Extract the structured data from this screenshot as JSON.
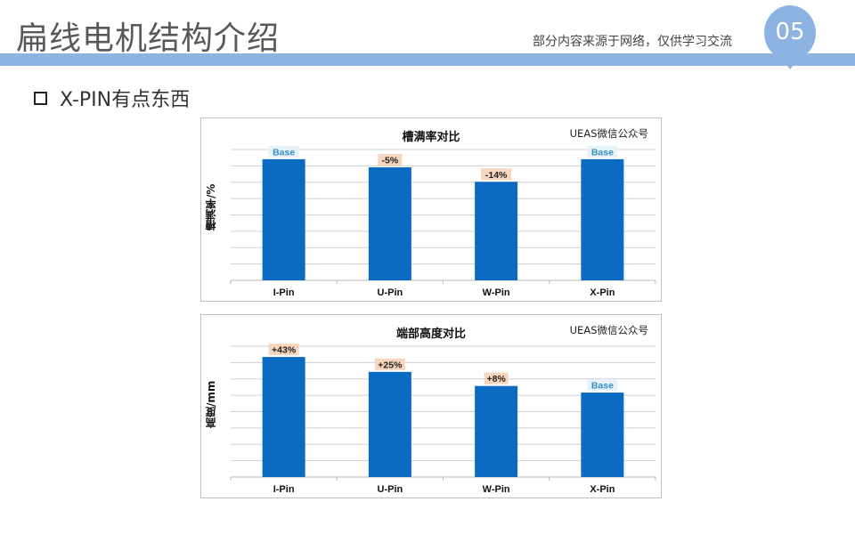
{
  "header": {
    "title": "扁线电机结构介绍",
    "notice": "部分内容来源于网络，仅供学习交流",
    "page_number": "05",
    "accent_color": "#8db3e2"
  },
  "section": {
    "bullet": "X-PIN有点东西"
  },
  "chart_data": [
    {
      "type": "bar",
      "title": "槽满率对比",
      "source": "UEAS微信公众号",
      "ylabel": "槽满率/%",
      "categories": [
        "I-Pin",
        "U-Pin",
        "W-Pin",
        "X-Pin"
      ],
      "values": [
        100,
        95,
        86,
        100
      ],
      "data_labels": [
        "Base",
        "-5%",
        "-14%",
        "Base"
      ],
      "bar_color": "#0b6bc3",
      "grid": true,
      "legend": "none"
    },
    {
      "type": "bar",
      "title": "端部高度对比",
      "source": "UEAS微信公众号",
      "ylabel": "高度/mm",
      "categories": [
        "I-Pin",
        "U-Pin",
        "W-Pin",
        "X-Pin"
      ],
      "values": [
        143,
        125,
        108,
        100
      ],
      "data_labels": [
        "+43%",
        "+25%",
        "+8%",
        "Base"
      ],
      "bar_color": "#0b6bc3",
      "grid": true,
      "legend": "none"
    }
  ]
}
